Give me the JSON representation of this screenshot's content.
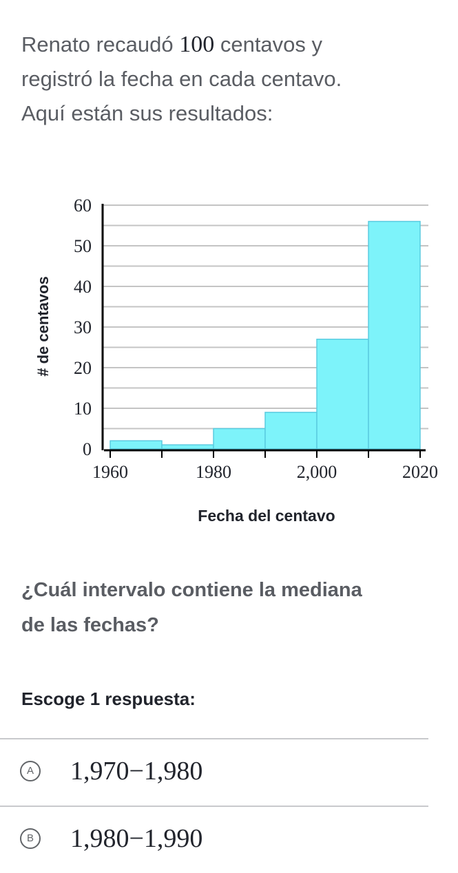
{
  "intro": {
    "line1_pre": "Renato recaudó ",
    "line1_num": "100",
    "line1_post": " centavos y",
    "line2": "registró la fecha en cada centavo.",
    "line3": "Aquí están sus resultados:"
  },
  "chart_data": {
    "type": "bar",
    "title": "",
    "xlabel": "Fecha del centavo",
    "ylabel": "# de centavos",
    "bin_edges": [
      1960,
      1970,
      1980,
      1990,
      2000,
      2010,
      2020
    ],
    "values": [
      2,
      1,
      5,
      9,
      27,
      56
    ],
    "ylim": [
      0,
      60
    ],
    "xlim": [
      1960,
      2020
    ],
    "y_ticks": [
      "0",
      "10",
      "20",
      "30",
      "40",
      "50",
      "60"
    ],
    "x_tick_labels": [
      {
        "value": 1960,
        "label": "1960"
      },
      {
        "value": 1980,
        "label": "1980"
      },
      {
        "value": 2000,
        "label": "2,000"
      },
      {
        "value": 2020,
        "label": "2020"
      }
    ],
    "grid": true,
    "bar_color": "#7df3fa",
    "bar_edge_color": "#5bcbe0"
  },
  "question": {
    "line1": "¿Cuál intervalo contiene la mediana",
    "line2": "de las fechas?"
  },
  "prompt": "Escoge 1 respuesta:",
  "choices": [
    {
      "letter": "A",
      "text": "1,970−1,980"
    },
    {
      "letter": "B",
      "text": "1,980−1,990"
    }
  ]
}
